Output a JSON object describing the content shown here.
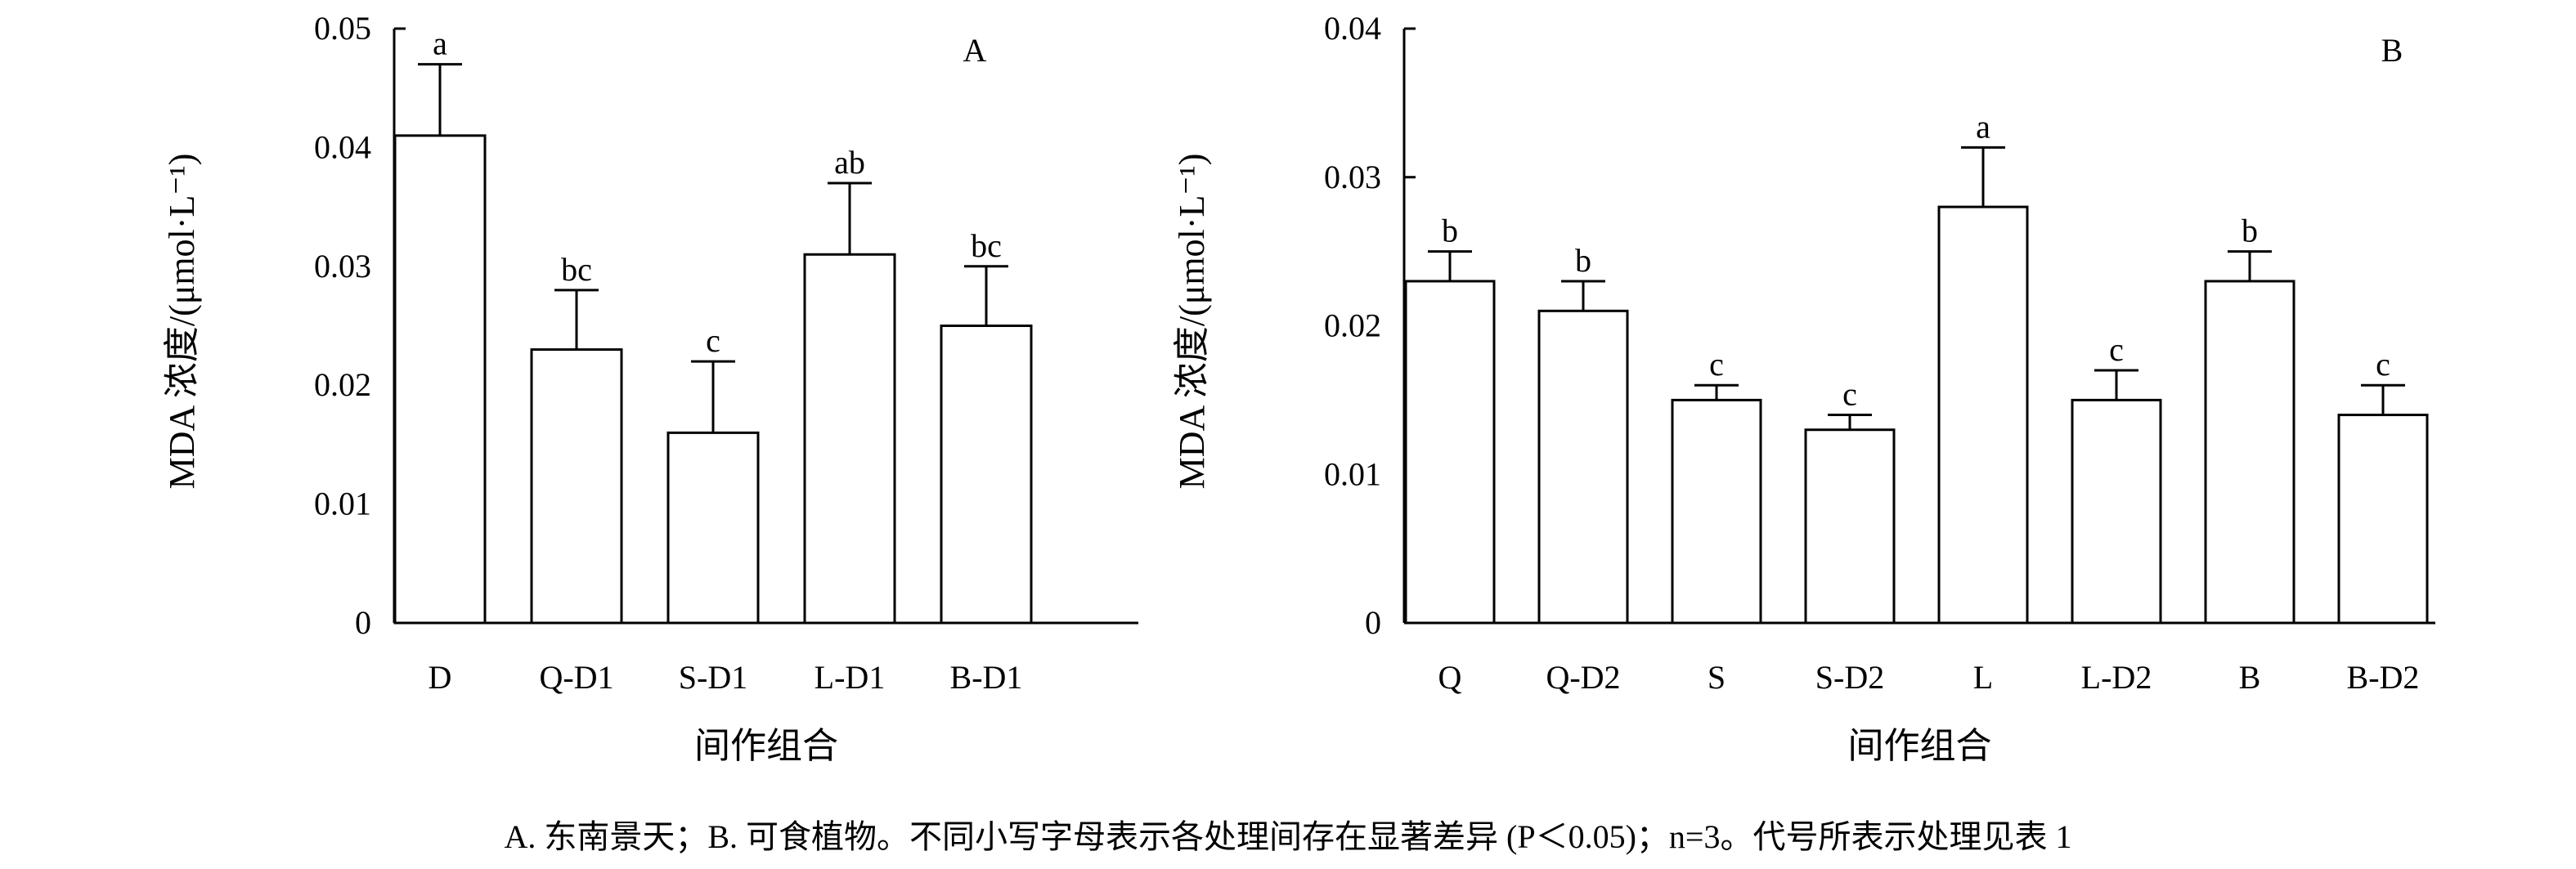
{
  "chart_data": [
    {
      "type": "bar",
      "panel_label": "A",
      "categories": [
        "D",
        "Q-D1",
        "S-D1",
        "L-D1",
        "B-D1"
      ],
      "values": [
        0.041,
        0.023,
        0.016,
        0.031,
        0.025
      ],
      "errors": [
        0.006,
        0.005,
        0.006,
        0.006,
        0.005
      ],
      "significance": [
        "a",
        "bc",
        "c",
        "ab",
        "bc"
      ],
      "ylabel": "MDA 浓度/(μmol·L⁻¹)",
      "xlabel": "间作组合",
      "ylim": [
        0,
        0.05
      ],
      "yticks": [
        "0",
        "0.01",
        "0.02",
        "0.03",
        "0.04",
        "0.05"
      ],
      "ytick_values": [
        0,
        0.01,
        0.02,
        0.03,
        0.04,
        0.05
      ],
      "grid": false
    },
    {
      "type": "bar",
      "panel_label": "B",
      "categories": [
        "Q",
        "Q-D2",
        "S",
        "S-D2",
        "L",
        "L-D2",
        "B",
        "B-D2"
      ],
      "values": [
        0.023,
        0.021,
        0.015,
        0.013,
        0.028,
        0.015,
        0.023,
        0.014
      ],
      "errors": [
        0.002,
        0.002,
        0.001,
        0.001,
        0.004,
        0.002,
        0.002,
        0.002
      ],
      "significance": [
        "b",
        "b",
        "c",
        "c",
        "a",
        "c",
        "b",
        "c"
      ],
      "ylabel": "MDA 浓度/(μmol·L⁻¹)",
      "xlabel": "间作组合",
      "ylim": [
        0,
        0.04
      ],
      "yticks": [
        "0",
        "0.01",
        "0.02",
        "0.03",
        "0.04"
      ],
      "ytick_values": [
        0,
        0.01,
        0.02,
        0.03,
        0.04
      ],
      "grid": false
    }
  ],
  "caption": "A. 东南景天；B. 可食植物。不同小写字母表示各处理间存在显著差异 (P＜0.05)；n=3。代号所表示处理见表 1"
}
